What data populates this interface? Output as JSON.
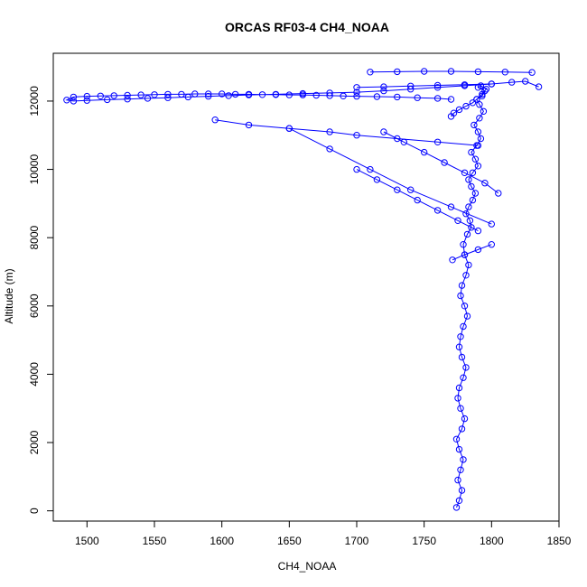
{
  "chart_data": {
    "type": "scatter",
    "title": "ORCAS RF03-4 CH4_NOAA",
    "xlabel": "CH4_NOAA",
    "ylabel": "Altitude (m)",
    "xlim": [
      1475,
      1850
    ],
    "ylim": [
      -300,
      13400
    ],
    "xticks": [
      1500,
      1550,
      1600,
      1650,
      1700,
      1750,
      1800,
      1850
    ],
    "yticks": [
      0,
      2000,
      4000,
      6000,
      8000,
      10000,
      12000
    ],
    "grid": false,
    "legend": "none",
    "marker": "open-circle",
    "connect_points": true,
    "color": "#0000ff",
    "series": [
      {
        "segments": [
          {
            "x": [
              1774,
              1776,
              1778,
              1775,
              1777,
              1779,
              1776,
              1774,
              1778,
              1780,
              1777,
              1775,
              1776,
              1779,
              1781,
              1778,
              1776,
              1777,
              1779,
              1782,
              1780,
              1777,
              1778,
              1781,
              1783,
              1780,
              1779,
              1782,
              1785,
              1784,
              1781,
              1783,
              1786,
              1788,
              1785,
              1783,
              1786,
              1790,
              1788,
              1785,
              1789,
              1792,
              1790,
              1787,
              1791,
              1794,
              1791,
              1789,
              1793,
              1796,
              1792,
              1790,
              1795,
              1793,
              1789,
              1786,
              1781,
              1776,
              1772,
              1770
            ],
            "y": [
              100,
              300,
              600,
              900,
              1200,
              1500,
              1800,
              2100,
              2400,
              2700,
              3000,
              3300,
              3600,
              3900,
              4200,
              4500,
              4800,
              5100,
              5400,
              5700,
              6000,
              6300,
              6600,
              6900,
              7200,
              7500,
              7800,
              8100,
              8300,
              8500,
              8700,
              8900,
              9100,
              9300,
              9500,
              9700,
              9900,
              10100,
              10300,
              10500,
              10700,
              10900,
              11100,
              11300,
              11500,
              11700,
              11900,
              12050,
              12200,
              12350,
              12450,
              12400,
              12300,
              12150,
              12050,
              11950,
              11850,
              11750,
              11650,
              11550
            ]
          },
          {
            "x": [
              1770,
              1760,
              1745,
              1730,
              1715,
              1700,
              1690,
              1680,
              1670,
              1660,
              1650,
              1640,
              1630,
              1620,
              1610,
              1600,
              1590,
              1580,
              1570,
              1560,
              1550,
              1540,
              1530,
              1520,
              1510,
              1500,
              1490,
              1485,
              1490,
              1500,
              1515,
              1530,
              1545,
              1560,
              1575,
              1590,
              1605,
              1620,
              1640,
              1660,
              1680,
              1700,
              1720,
              1740,
              1760,
              1780,
              1800,
              1815,
              1825,
              1835
            ],
            "y": [
              12050,
              12080,
              12100,
              12120,
              12130,
              12140,
              12150,
              12160,
              12170,
              12180,
              12180,
              12190,
              12190,
              12200,
              12200,
              12210,
              12210,
              12210,
              12200,
              12200,
              12190,
              12180,
              12170,
              12160,
              12150,
              12140,
              12120,
              12030,
              12000,
              12020,
              12040,
              12060,
              12080,
              12100,
              12120,
              12140,
              12160,
              12180,
              12200,
              12220,
              12240,
              12260,
              12300,
              12350,
              12400,
              12450,
              12500,
              12550,
              12580,
              12420
            ]
          },
          {
            "x": [
              1595,
              1620,
              1650,
              1680,
              1700,
              1730,
              1760,
              1790
            ],
            "y": [
              11450,
              11300,
              11200,
              11100,
              11000,
              10900,
              10800,
              10700
            ]
          },
          {
            "x": [
              1650,
              1680,
              1710,
              1740,
              1770,
              1800
            ],
            "y": [
              11200,
              10600,
              10000,
              9400,
              8900,
              8400
            ]
          },
          {
            "x": [
              1710,
              1730,
              1750,
              1770,
              1790,
              1810,
              1830
            ],
            "y": [
              12850,
              12860,
              12870,
              12870,
              12860,
              12850,
              12840
            ]
          },
          {
            "x": [
              1700,
              1720,
              1740,
              1760,
              1780,
              1800
            ],
            "y": [
              12400,
              12420,
              12440,
              12460,
              12480,
              12500
            ]
          },
          {
            "x": [
              1720,
              1735,
              1750,
              1765,
              1780,
              1795,
              1805
            ],
            "y": [
              11100,
              10800,
              10500,
              10200,
              9900,
              9600,
              9300
            ]
          },
          {
            "x": [
              1700,
              1715,
              1730,
              1745,
              1760,
              1775,
              1790
            ],
            "y": [
              10000,
              9700,
              9400,
              9100,
              8800,
              8500,
              8200
            ]
          },
          {
            "x": [
              1771,
              1780,
              1790,
              1800
            ],
            "y": [
              7350,
              7500,
              7650,
              7800
            ]
          }
        ]
      }
    ]
  }
}
